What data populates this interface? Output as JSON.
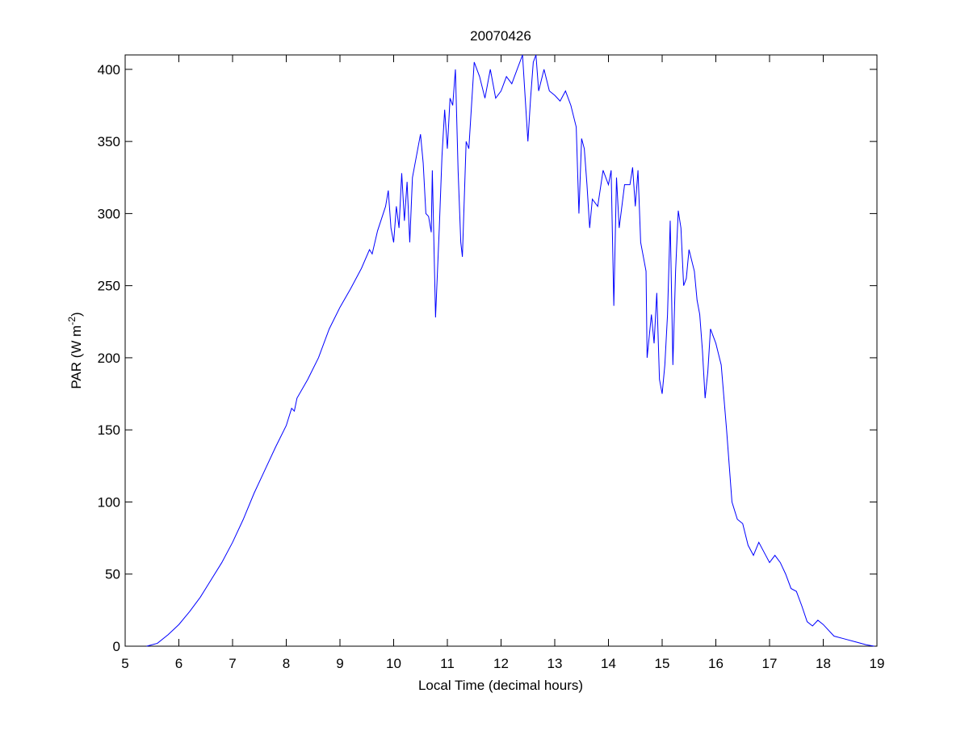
{
  "chart_data": {
    "type": "line",
    "title": "20070426",
    "xlabel": "Local Time (decimal hours)",
    "ylabel": [
      "PAR (W m",
      "-2",
      ")"
    ],
    "xlim": [
      5,
      19
    ],
    "ylim": [
      0,
      410
    ],
    "xticks": [
      5,
      6,
      7,
      8,
      9,
      10,
      11,
      12,
      13,
      14,
      15,
      16,
      17,
      18,
      19
    ],
    "yticks": [
      0,
      50,
      100,
      150,
      200,
      250,
      300,
      350,
      400
    ],
    "x": [
      5.4,
      5.6,
      5.8,
      6.0,
      6.2,
      6.4,
      6.6,
      6.8,
      7.0,
      7.2,
      7.4,
      7.6,
      7.8,
      8.0,
      8.1,
      8.15,
      8.2,
      8.4,
      8.6,
      8.8,
      9.0,
      9.2,
      9.4,
      9.55,
      9.6,
      9.7,
      9.85,
      9.9,
      9.95,
      10.0,
      10.05,
      10.1,
      10.15,
      10.2,
      10.25,
      10.3,
      10.35,
      10.45,
      10.5,
      10.55,
      10.6,
      10.65,
      10.7,
      10.72,
      10.78,
      10.85,
      10.9,
      10.95,
      11.0,
      11.05,
      11.1,
      11.15,
      11.2,
      11.25,
      11.28,
      11.35,
      11.4,
      11.5,
      11.6,
      11.7,
      11.8,
      11.9,
      12.0,
      12.1,
      12.2,
      12.3,
      12.4,
      12.45,
      12.5,
      12.55,
      12.6,
      12.65,
      12.7,
      12.8,
      12.9,
      13.0,
      13.1,
      13.2,
      13.3,
      13.4,
      13.45,
      13.5,
      13.55,
      13.6,
      13.65,
      13.7,
      13.8,
      13.9,
      14.0,
      14.05,
      14.1,
      14.15,
      14.2,
      14.3,
      14.4,
      14.45,
      14.5,
      14.55,
      14.6,
      14.65,
      14.7,
      14.72,
      14.8,
      14.85,
      14.9,
      14.95,
      15.0,
      15.05,
      15.1,
      15.15,
      15.2,
      15.25,
      15.3,
      15.35,
      15.4,
      15.45,
      15.5,
      15.6,
      15.65,
      15.7,
      15.75,
      15.8,
      15.85,
      15.9,
      16.0,
      16.1,
      16.2,
      16.3,
      16.4,
      16.5,
      16.6,
      16.7,
      16.8,
      16.9,
      17.0,
      17.1,
      17.2,
      17.3,
      17.4,
      17.5,
      17.6,
      17.7,
      17.8,
      17.9,
      18.0,
      18.2,
      18.4,
      18.6,
      18.8,
      18.95
    ],
    "series": [
      {
        "color": "#0000ff",
        "values": [
          0,
          2,
          8,
          15,
          24,
          34,
          46,
          58,
          72,
          88,
          106,
          122,
          138,
          153,
          165,
          163,
          172,
          185,
          200,
          220,
          235,
          248,
          262,
          275,
          272,
          288,
          305,
          316,
          290,
          280,
          305,
          290,
          328,
          295,
          322,
          280,
          325,
          345,
          355,
          335,
          300,
          298,
          287,
          330,
          228,
          290,
          340,
          372,
          345,
          380,
          375,
          400,
          330,
          280,
          270,
          350,
          345,
          405,
          395,
          380,
          400,
          380,
          385,
          395,
          390,
          400,
          410,
          380,
          350,
          380,
          405,
          410,
          385,
          400,
          385,
          382,
          378,
          385,
          375,
          360,
          300,
          352,
          345,
          320,
          290,
          310,
          305,
          330,
          320,
          330,
          236,
          325,
          290,
          320,
          320,
          332,
          305,
          330,
          280,
          270,
          260,
          200,
          230,
          210,
          245,
          185,
          175,
          195,
          230,
          295,
          195,
          260,
          302,
          290,
          250,
          255,
          275,
          260,
          240,
          230,
          205,
          172,
          190,
          220,
          210,
          195,
          150,
          100,
          88,
          85,
          70,
          63,
          72,
          65,
          58,
          63,
          58,
          50,
          40,
          38,
          28,
          17,
          14,
          18,
          15,
          7,
          5,
          3,
          1,
          0
        ]
      }
    ]
  }
}
